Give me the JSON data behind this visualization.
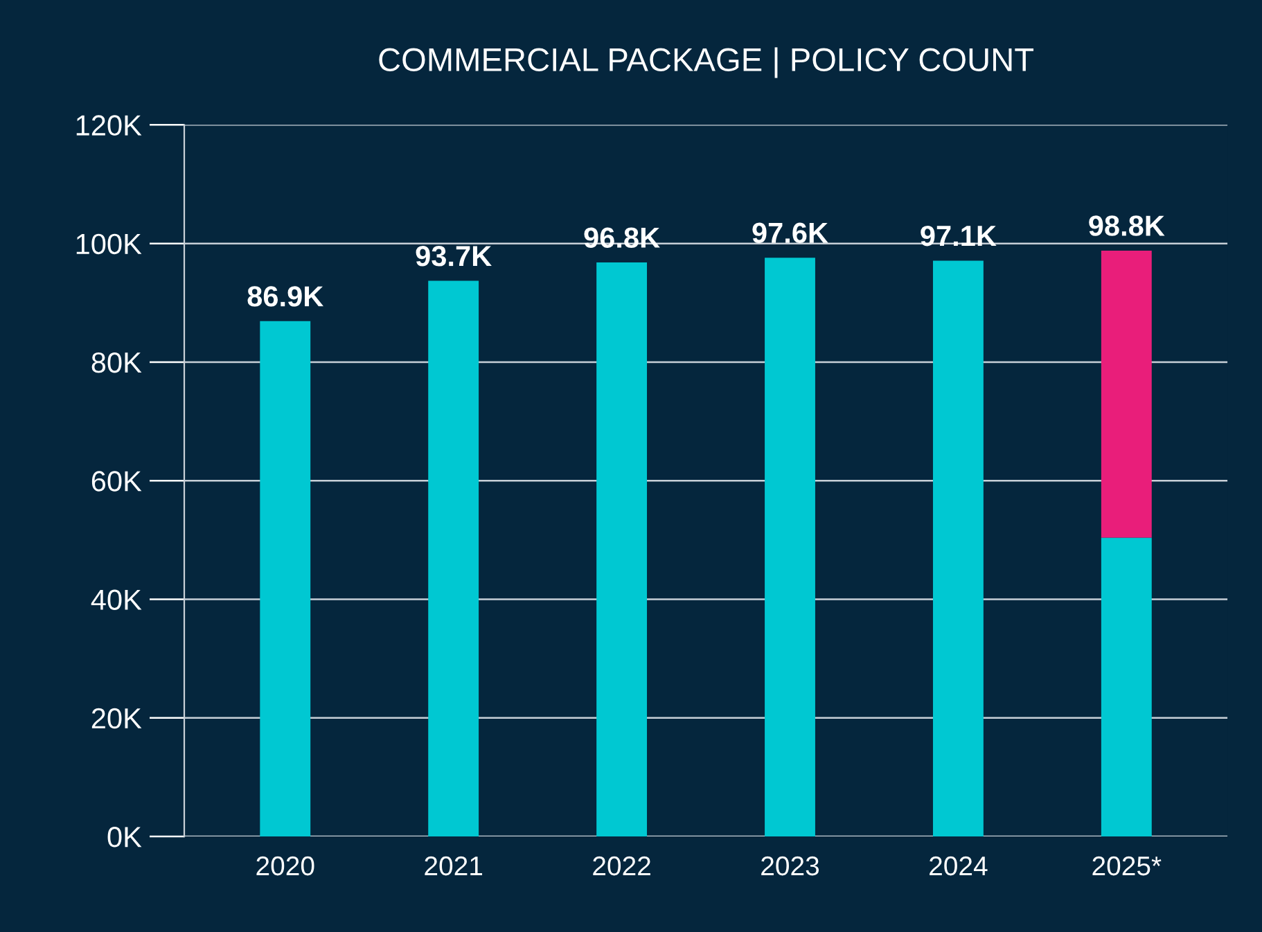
{
  "chart_data": {
    "type": "bar",
    "title": "COMMERCIAL PACKAGE | POLICY COUNT",
    "categories": [
      "2020",
      "2021",
      "2022",
      "2023",
      "2024",
      "2025*"
    ],
    "stacked": true,
    "series": [
      {
        "color": "#00c8d2",
        "values": [
          86900,
          93700,
          96800,
          97600,
          97100,
          50400
        ]
      },
      {
        "color": "#e91e7a",
        "values": [
          null,
          null,
          null,
          null,
          null,
          48400
        ]
      }
    ],
    "totals": [
      "86.9K",
      "93.7K",
      "96.8K",
      "97.6K",
      "97.1K",
      "98.8K"
    ],
    "ylim": [
      0,
      120000
    ],
    "yticks": [
      {
        "value": 0,
        "label": "0K"
      },
      {
        "value": 20000,
        "label": "20K"
      },
      {
        "value": 40000,
        "label": "40K"
      },
      {
        "value": 60000,
        "label": "60K"
      },
      {
        "value": 80000,
        "label": "80K"
      },
      {
        "value": 100000,
        "label": "100K"
      },
      {
        "value": 120000,
        "label": "120K"
      }
    ],
    "grid": "y"
  }
}
